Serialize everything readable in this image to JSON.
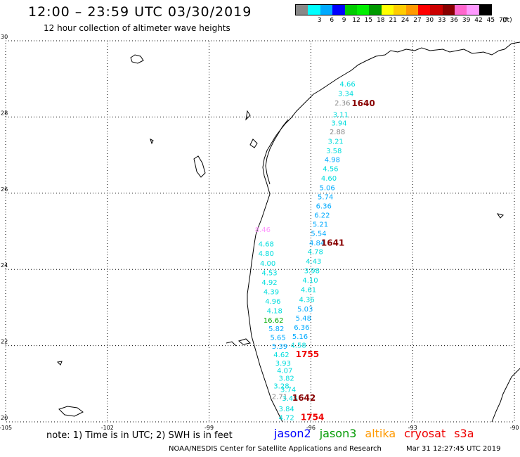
{
  "header": {
    "title": "12:00 – 23:59 UTC 03/30/2019",
    "subtitle": "12 hour collection of altimeter wave heights"
  },
  "legend": {
    "unit": "(ft)",
    "colors": [
      "#888888",
      "#00ffff",
      "#00aaff",
      "#0000ff",
      "#00cc00",
      "#00ee00",
      "#009900",
      "#ffff00",
      "#ffcc00",
      "#ff9900",
      "#ff0000",
      "#cc0000",
      "#880000",
      "#ff66cc",
      "#ff99ff",
      "#000000"
    ],
    "labels": [
      "3",
      "6",
      "9",
      "12",
      "15",
      "18",
      "21",
      "24",
      "27",
      "30",
      "33",
      "36",
      "39",
      "42",
      "45",
      "70"
    ]
  },
  "map": {
    "lon_labels": [
      "-105",
      "-102",
      "-99",
      "-96",
      "-93",
      "-90"
    ],
    "lat_labels": [
      "30",
      "28",
      "26",
      "24",
      "22",
      "20"
    ],
    "lon_values": [
      -105,
      -102,
      -99,
      -96,
      -93,
      -90
    ],
    "lat_values": [
      30,
      28,
      26,
      24,
      22,
      20
    ],
    "lon_range": [
      -105,
      -90
    ],
    "lat_range": [
      20,
      30
    ]
  },
  "observations": [
    {
      "text": "4.66",
      "lon": -95.15,
      "lat": 28.8,
      "color": "#00dddd"
    },
    {
      "text": "3.34",
      "lon": -95.2,
      "lat": 28.55,
      "color": "#00dddd"
    },
    {
      "text": "2.36",
      "lon": -95.3,
      "lat": 28.3,
      "color": "#888888"
    },
    {
      "text": "3.11",
      "lon": -95.35,
      "lat": 28.0,
      "color": "#00dddd"
    },
    {
      "text": "3.94",
      "lon": -95.4,
      "lat": 27.78,
      "color": "#00dddd"
    },
    {
      "text": "2.88",
      "lon": -95.45,
      "lat": 27.55,
      "color": "#888888"
    },
    {
      "text": "3.21",
      "lon": -95.5,
      "lat": 27.3,
      "color": "#00dddd"
    },
    {
      "text": "3.58",
      "lon": -95.55,
      "lat": 27.05,
      "color": "#00dddd"
    },
    {
      "text": "4.98",
      "lon": -95.6,
      "lat": 26.82,
      "color": "#00aaff"
    },
    {
      "text": "4.56",
      "lon": -95.65,
      "lat": 26.58,
      "color": "#00dddd"
    },
    {
      "text": "4.60",
      "lon": -95.7,
      "lat": 26.33,
      "color": "#00dddd"
    },
    {
      "text": "5.06",
      "lon": -95.75,
      "lat": 26.08,
      "color": "#00aaff"
    },
    {
      "text": "5.74",
      "lon": -95.8,
      "lat": 25.84,
      "color": "#00aaff"
    },
    {
      "text": "6.36",
      "lon": -95.85,
      "lat": 25.6,
      "color": "#00aaff"
    },
    {
      "text": "6.22",
      "lon": -95.9,
      "lat": 25.36,
      "color": "#00aaff"
    },
    {
      "text": "5.21",
      "lon": -95.95,
      "lat": 25.12,
      "color": "#00aaff"
    },
    {
      "text": "5.54",
      "lon": -96.0,
      "lat": 24.88,
      "color": "#00aaff"
    },
    {
      "text": "4.84",
      "lon": -96.05,
      "lat": 24.63,
      "color": "#00aaff"
    },
    {
      "text": "4.78",
      "lon": -96.1,
      "lat": 24.4,
      "color": "#00dddd"
    },
    {
      "text": "4.43",
      "lon": -96.15,
      "lat": 24.15,
      "color": "#00dddd"
    },
    {
      "text": "3.98",
      "lon": -96.2,
      "lat": 23.9,
      "color": "#00dddd"
    },
    {
      "text": "4.10",
      "lon": -96.25,
      "lat": 23.65,
      "color": "#00dddd"
    },
    {
      "text": "4.61",
      "lon": -96.3,
      "lat": 23.4,
      "color": "#00dddd"
    },
    {
      "text": "4.36",
      "lon": -96.35,
      "lat": 23.15,
      "color": "#00dddd"
    },
    {
      "text": "5.03",
      "lon": -96.4,
      "lat": 22.9,
      "color": "#00aaff"
    },
    {
      "text": "5.48",
      "lon": -96.45,
      "lat": 22.66,
      "color": "#00aaff"
    },
    {
      "text": "6.36",
      "lon": -96.5,
      "lat": 22.42,
      "color": "#00aaff"
    },
    {
      "text": "5.16",
      "lon": -96.55,
      "lat": 22.18,
      "color": "#00aaff"
    },
    {
      "text": "4.58",
      "lon": -96.6,
      "lat": 21.95,
      "color": "#00dddd"
    },
    {
      "text": "8.46",
      "lon": -97.65,
      "lat": 24.98,
      "color": "#ff99ff"
    },
    {
      "text": "4.68",
      "lon": -97.55,
      "lat": 24.6,
      "color": "#00dddd"
    },
    {
      "text": "4.80",
      "lon": -97.55,
      "lat": 24.35,
      "color": "#00dddd"
    },
    {
      "text": "4.00",
      "lon": -97.5,
      "lat": 24.1,
      "color": "#00dddd"
    },
    {
      "text": "4.53",
      "lon": -97.45,
      "lat": 23.85,
      "color": "#00dddd"
    },
    {
      "text": "4.92",
      "lon": -97.45,
      "lat": 23.6,
      "color": "#00dddd"
    },
    {
      "text": "4.39",
      "lon": -97.4,
      "lat": 23.35,
      "color": "#00dddd"
    },
    {
      "text": "4.96",
      "lon": -97.35,
      "lat": 23.1,
      "color": "#00dddd"
    },
    {
      "text": "4.18",
      "lon": -97.3,
      "lat": 22.85,
      "color": "#00dddd"
    },
    {
      "text": "16.62",
      "lon": -97.4,
      "lat": 22.6,
      "color": "#00aa00"
    },
    {
      "text": "5.82",
      "lon": -97.25,
      "lat": 22.38,
      "color": "#00aaff"
    },
    {
      "text": "5.65",
      "lon": -97.2,
      "lat": 22.15,
      "color": "#00aaff"
    },
    {
      "text": "5.39",
      "lon": -97.15,
      "lat": 21.92,
      "color": "#00aaff"
    },
    {
      "text": "4.62",
      "lon": -97.1,
      "lat": 21.7,
      "color": "#00dddd"
    },
    {
      "text": "3.93",
      "lon": -97.05,
      "lat": 21.48,
      "color": "#00dddd"
    },
    {
      "text": "4.07",
      "lon": -97.0,
      "lat": 21.28,
      "color": "#00dddd"
    },
    {
      "text": "3.82",
      "lon": -96.95,
      "lat": 21.08,
      "color": "#00dddd"
    },
    {
      "text": "3.28",
      "lon": -97.1,
      "lat": 20.88,
      "color": "#00dddd"
    },
    {
      "text": "3.74",
      "lon": -96.9,
      "lat": 20.78,
      "color": "#00dddd"
    },
    {
      "text": "2.71",
      "lon": -97.15,
      "lat": 20.6,
      "color": "#888888"
    },
    {
      "text": "3.45",
      "lon": -96.85,
      "lat": 20.55,
      "color": "#00dddd"
    },
    {
      "text": "3.84",
      "lon": -96.95,
      "lat": 20.28,
      "color": "#00dddd"
    },
    {
      "text": "4.72",
      "lon": -96.95,
      "lat": 20.05,
      "color": "#00dddd"
    }
  ],
  "passes": [
    {
      "text": "1640",
      "lon": -94.8,
      "lat": 28.28,
      "color": "#880000"
    },
    {
      "text": "1641",
      "lon": -95.7,
      "lat": 24.62,
      "color": "#880000"
    },
    {
      "text": "1755",
      "lon": -96.45,
      "lat": 21.7,
      "color": "#ee0000"
    },
    {
      "text": "1642",
      "lon": -96.55,
      "lat": 20.55,
      "color": "#880000"
    },
    {
      "text": "1754",
      "lon": -96.3,
      "lat": 20.05,
      "color": "#ee0000"
    }
  ],
  "footer": {
    "note": "note: 1) Time is in UTC; 2) SWH is in feet",
    "satellites": [
      {
        "label": "jason2",
        "color": "#0000ff"
      },
      {
        "label": "jason3",
        "color": "#009900"
      },
      {
        "label": "altika",
        "color": "#ff9900"
      },
      {
        "label": "cryosat",
        "color": "#ee0000"
      },
      {
        "label": "s3a",
        "color": "#ee0000"
      }
    ],
    "credit": "NOAA/NESDIS Center for Satellite Applications and Research",
    "timestamp": "Mar 31 12:27:45 UTC 2019"
  }
}
